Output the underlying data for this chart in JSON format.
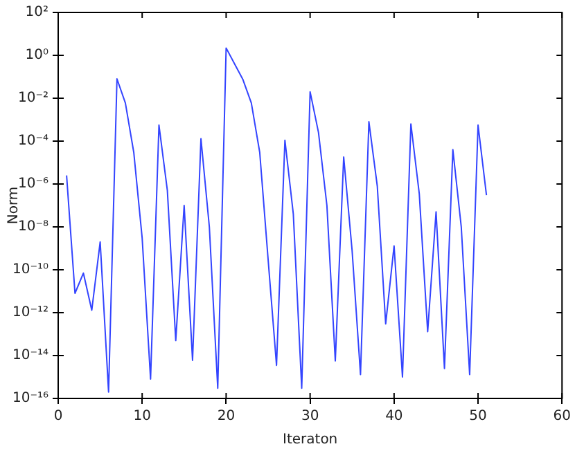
{
  "chart_data": {
    "type": "line",
    "xlabel": "Iteraton",
    "ylabel": "Norm",
    "log": "y",
    "grid": false,
    "legend": false,
    "marker": "none",
    "line_style": "solid",
    "x": [
      1,
      2,
      3,
      4,
      5,
      6,
      7,
      8,
      9,
      10,
      11,
      12,
      13,
      14,
      15,
      16,
      17,
      18,
      19,
      20,
      21,
      22,
      23,
      24,
      25,
      26,
      27,
      28,
      29,
      30,
      31,
      32,
      33,
      34,
      35,
      36,
      37,
      38,
      39,
      40,
      41,
      42,
      43,
      44,
      45,
      46,
      47,
      48,
      49,
      50,
      51
    ],
    "series": [
      {
        "color": "#3344ff",
        "values": [
          2.5e-06,
          8e-12,
          7e-11,
          1.3e-12,
          2e-09,
          2e-16,
          0.08,
          0.006,
          3e-05,
          3e-09,
          8e-16,
          0.00056,
          5e-07,
          5e-14,
          1e-07,
          6e-15,
          0.00013,
          1e-08,
          3e-16,
          2.2,
          0.4,
          0.074,
          0.006,
          3e-05,
          3e-10,
          3.5e-15,
          0.00011,
          4e-08,
          3e-16,
          0.02,
          0.00025,
          1e-07,
          5.6e-15,
          1.8e-05,
          8e-10,
          1.3e-15,
          0.0008,
          8e-07,
          3e-13,
          1.3e-09,
          1e-15,
          0.00063,
          3.5e-07,
          1.3e-13,
          5e-08,
          2.5e-15,
          4e-05,
          1e-08,
          1.3e-15,
          0.00056,
          3e-07
        ]
      }
    ],
    "xlim": [
      0,
      60
    ],
    "xticks": [
      0,
      10,
      20,
      30,
      40,
      50,
      60
    ],
    "ylim": [
      1e-16,
      100
    ],
    "yticks": [
      {
        "value": 1e-16,
        "label": "10⁻¹⁶"
      },
      {
        "value": 1e-14,
        "label": "10⁻¹⁴"
      },
      {
        "value": 1e-12,
        "label": "10⁻¹²"
      },
      {
        "value": 1e-10,
        "label": "10⁻¹⁰"
      },
      {
        "value": 1e-08,
        "label": "10⁻⁸"
      },
      {
        "value": 1e-06,
        "label": "10⁻⁶"
      },
      {
        "value": 0.0001,
        "label": "10⁻⁴"
      },
      {
        "value": 0.01,
        "label": "10⁻²"
      },
      {
        "value": 1,
        "label": "10⁰"
      },
      {
        "value": 100,
        "label": "10²"
      }
    ]
  }
}
